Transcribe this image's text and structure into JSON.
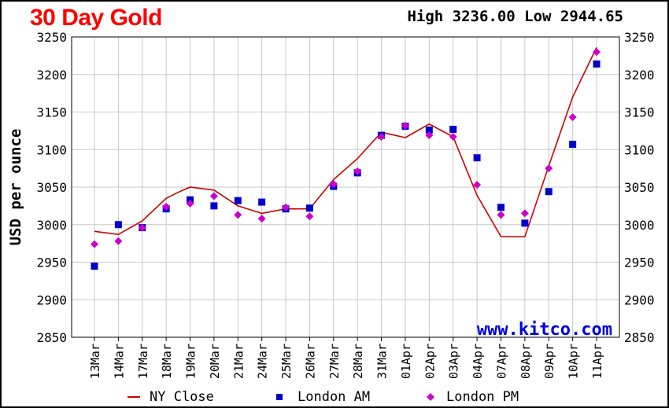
{
  "title": "30 Day Gold",
  "high_low": {
    "text": "High 3236.00 Low 2944.65"
  },
  "watermark": "www.kitco.com",
  "chart_data": {
    "type": "line",
    "title": "30 Day Gold",
    "ylabel": "USD per ounce",
    "xlabel": "",
    "ylim": [
      2850,
      3250
    ],
    "y_ticks": [
      2850,
      2900,
      2950,
      3000,
      3050,
      3100,
      3150,
      3200,
      3250
    ],
    "categories": [
      "13Mar",
      "14Mar",
      "17Mar",
      "18Mar",
      "19Mar",
      "20Mar",
      "21Mar",
      "24Mar",
      "25Mar",
      "26Mar",
      "27Mar",
      "28Mar",
      "31Mar",
      "01Apr",
      "02Apr",
      "03Apr",
      "04Apr",
      "07Apr",
      "08Apr",
      "09Apr",
      "10Apr",
      "11Apr"
    ],
    "grid": true,
    "legend_position": "bottom",
    "series": [
      {
        "name": "NY Close",
        "kind": "line",
        "color": "#cc0000",
        "x": [
          0,
          1,
          2,
          3,
          3.5,
          4,
          4.5,
          5,
          6,
          7,
          8,
          9,
          10,
          11,
          12,
          13,
          14,
          15,
          16,
          17,
          18,
          19,
          20,
          21
        ],
        "values": [
          2991,
          2987,
          3005,
          3035,
          3043,
          3050,
          3048,
          3046,
          3025,
          3015,
          3021,
          3021,
          3060,
          3088,
          3123,
          3116,
          3134,
          3117,
          3039,
          2984,
          2984,
          3078,
          3170,
          3236
        ]
      },
      {
        "name": "London AM",
        "kind": "square",
        "color": "#0000cc",
        "values": [
          2944.65,
          3000,
          2996,
          3021,
          3033,
          3025,
          3032,
          3030,
          3021,
          3022,
          3051,
          3069,
          3119,
          3131,
          3126,
          3127,
          3089,
          3023,
          3002,
          3044,
          3107,
          3214
        ]
      },
      {
        "name": "London PM",
        "kind": "diamond",
        "color": "#cc00cc",
        "values": [
          2974,
          2978,
          2996,
          3024,
          3028,
          3038,
          3013,
          3008,
          3023,
          3011,
          3054,
          3071,
          3117,
          3132,
          3119,
          3117,
          3053,
          3013,
          3015,
          3075,
          3143,
          3230
        ]
      }
    ]
  }
}
